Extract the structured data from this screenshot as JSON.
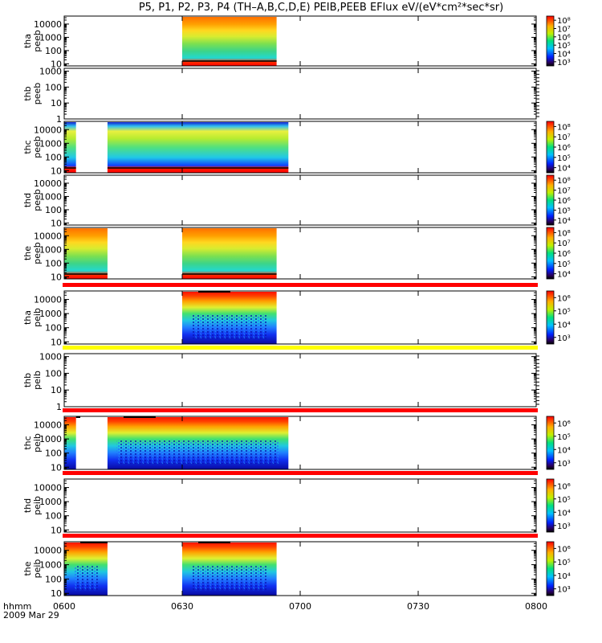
{
  "title": "P5, P1, P2, P3, P4 (TH–A,B,C,D,E) PEIB,PEEB EFlux eV/(eV*cm²*sec*sr)",
  "chart_data": {
    "type": "heatmap",
    "x_axis": {
      "label": "hhmm",
      "date": "2009 Mar 29",
      "ticks": [
        "0600",
        "0630",
        "0700",
        "0730",
        "0800"
      ],
      "range": [
        "06:00",
        "08:00"
      ]
    },
    "y_scale": "log",
    "colorbar_scale": "log",
    "panels": [
      {
        "probe": "tha",
        "species": "peeb",
        "yticks": [
          "10",
          "100",
          "1000",
          "10000"
        ],
        "ylim": [
          7,
          40000
        ],
        "data_intervals": [
          [
            "06:30",
            "06:54"
          ]
        ],
        "has_colorbar": true,
        "colorbar_ticks": [
          "10³",
          "10⁴",
          "10⁵",
          "10⁶",
          "10⁷",
          "10⁸"
        ],
        "bar_above": null
      },
      {
        "probe": "thb",
        "species": "peeb",
        "yticks": [
          "1",
          "10",
          "100",
          "1000"
        ],
        "ylim": [
          1,
          1500
        ],
        "data_intervals": [],
        "has_colorbar": false,
        "colorbar_ticks": [],
        "bar_above": null
      },
      {
        "probe": "thc",
        "species": "peeb",
        "yticks": [
          "10",
          "100",
          "1000",
          "10000"
        ],
        "ylim": [
          7,
          40000
        ],
        "data_intervals": [
          [
            "06:00",
            "06:03"
          ],
          [
            "06:11",
            "06:57"
          ]
        ],
        "has_colorbar": true,
        "colorbar_ticks": [
          "10⁴",
          "10⁵",
          "10⁶",
          "10⁷",
          "10⁸"
        ],
        "bar_above": null
      },
      {
        "probe": "thd",
        "species": "peeb",
        "yticks": [
          "10",
          "100",
          "1000",
          "10000"
        ],
        "ylim": [
          7,
          40000
        ],
        "data_intervals": [],
        "has_colorbar": true,
        "colorbar_ticks": [
          "10⁴",
          "10⁵",
          "10⁶",
          "10⁷",
          "10⁸"
        ],
        "bar_above": null
      },
      {
        "probe": "the",
        "species": "peeb",
        "yticks": [
          "10",
          "100",
          "1000",
          "10000"
        ],
        "ylim": [
          7,
          40000
        ],
        "data_intervals": [
          [
            "06:00",
            "06:11"
          ],
          [
            "06:30",
            "06:54"
          ]
        ],
        "has_colorbar": true,
        "colorbar_ticks": [
          "10⁴",
          "10⁵",
          "10⁶",
          "10⁷",
          "10⁸"
        ],
        "bar_above": null
      },
      {
        "probe": "tha",
        "species": "peib",
        "yticks": [
          "10",
          "100",
          "1000",
          "10000"
        ],
        "ylim": [
          7,
          40000
        ],
        "data_intervals": [
          [
            "06:30",
            "06:54"
          ]
        ],
        "has_colorbar": true,
        "colorbar_ticks": [
          "10³",
          "10⁴",
          "10⁵",
          "10⁶"
        ],
        "bar_above": "#ff0000"
      },
      {
        "probe": "thb",
        "species": "peib",
        "yticks": [
          "1",
          "10",
          "100",
          "1000"
        ],
        "ylim": [
          1,
          1500
        ],
        "data_intervals": [],
        "has_colorbar": false,
        "colorbar_ticks": [],
        "bar_above": "#ffff00"
      },
      {
        "probe": "thc",
        "species": "peib",
        "yticks": [
          "10",
          "100",
          "1000",
          "10000"
        ],
        "ylim": [
          7,
          40000
        ],
        "data_intervals": [
          [
            "06:00",
            "06:03"
          ],
          [
            "06:11",
            "06:57"
          ]
        ],
        "has_colorbar": true,
        "colorbar_ticks": [
          "10³",
          "10⁴",
          "10⁵",
          "10⁶"
        ],
        "bar_above": "#ff0000"
      },
      {
        "probe": "thd",
        "species": "peib",
        "yticks": [
          "10",
          "100",
          "1000",
          "10000"
        ],
        "ylim": [
          7,
          40000
        ],
        "data_intervals": [],
        "has_colorbar": true,
        "colorbar_ticks": [
          "10³",
          "10⁴",
          "10⁵",
          "10⁶"
        ],
        "bar_above": "#ff0000"
      },
      {
        "probe": "the",
        "species": "peib",
        "yticks": [
          "10",
          "100",
          "1000",
          "10000"
        ],
        "ylim": [
          7,
          40000
        ],
        "data_intervals": [
          [
            "06:00",
            "06:11"
          ],
          [
            "06:30",
            "06:54"
          ]
        ],
        "has_colorbar": true,
        "colorbar_ticks": [
          "10³",
          "10⁴",
          "10⁵",
          "10⁶"
        ],
        "bar_above": "#ff0000"
      }
    ]
  }
}
